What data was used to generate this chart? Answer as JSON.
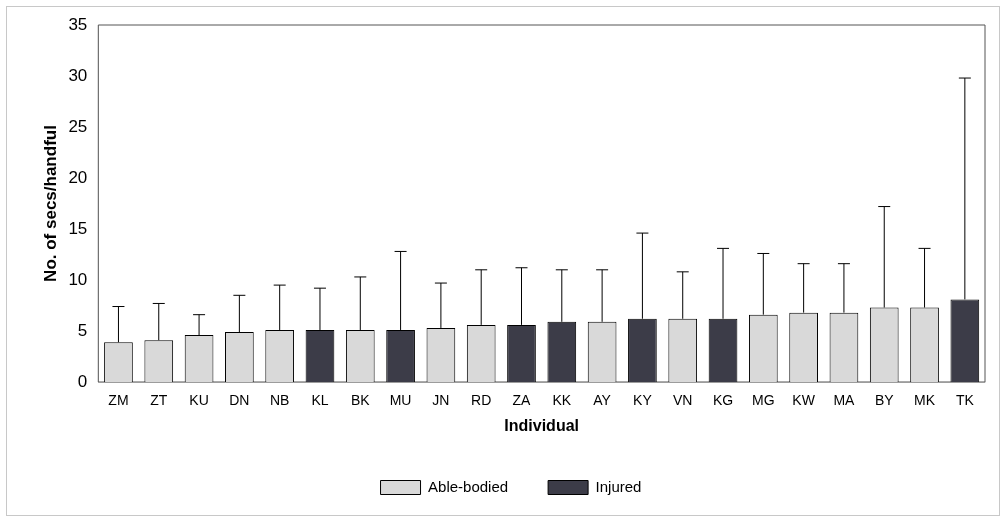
{
  "chart_data": {
    "type": "bar",
    "xlabel": "Individual",
    "ylabel": "No. of secs/handful",
    "categories": [
      "ZM",
      "ZT",
      "KU",
      "DN",
      "NB",
      "KL",
      "BK",
      "MU",
      "JN",
      "RD",
      "ZA",
      "KK",
      "AY",
      "KY",
      "VN",
      "KG",
      "MG",
      "KW",
      "MA",
      "BY",
      "MK",
      "TK"
    ],
    "series": [
      {
        "name": "Able-bodied",
        "color": "#d9d9d9",
        "values": [
          3.9,
          4.1,
          4.6,
          4.9,
          5.1,
          null,
          5.1,
          null,
          5.3,
          5.6,
          null,
          null,
          5.9,
          null,
          6.2,
          null,
          6.6,
          6.8,
          6.8,
          7.3,
          7.3,
          null
        ],
        "errors": [
          [
            3.9,
            7.4
          ],
          [
            4.1,
            7.7
          ],
          [
            4.6,
            6.6
          ],
          [
            4.9,
            8.5
          ],
          [
            5.1,
            9.5
          ],
          null,
          [
            5.1,
            10.3
          ],
          null,
          [
            5.3,
            9.7
          ],
          [
            5.6,
            11.0
          ],
          null,
          null,
          [
            5.9,
            11.0
          ],
          null,
          [
            6.2,
            10.8
          ],
          null,
          [
            6.6,
            12.6
          ],
          [
            6.8,
            11.6
          ],
          [
            6.8,
            11.6
          ],
          [
            7.3,
            17.2
          ],
          [
            7.3,
            13.1
          ],
          null
        ]
      },
      {
        "name": "Injured",
        "color": "#3c3c48",
        "values": [
          null,
          null,
          null,
          null,
          null,
          5.1,
          null,
          5.1,
          null,
          null,
          5.6,
          5.9,
          null,
          6.2,
          null,
          6.2,
          null,
          null,
          null,
          null,
          null,
          8.1
        ],
        "errors": [
          null,
          null,
          null,
          null,
          null,
          [
            5.1,
            9.2
          ],
          null,
          [
            5.1,
            12.8
          ],
          null,
          null,
          [
            5.6,
            11.2
          ],
          [
            5.9,
            11.0
          ],
          null,
          [
            6.2,
            14.6
          ],
          null,
          [
            6.2,
            13.1
          ],
          null,
          null,
          null,
          null,
          null,
          [
            8.1,
            29.8
          ]
        ]
      }
    ],
    "ylim": [
      0,
      35
    ],
    "yticks": [
      0,
      5,
      10,
      15,
      20,
      25,
      30,
      35
    ],
    "grid": false,
    "legend": "bottom"
  }
}
